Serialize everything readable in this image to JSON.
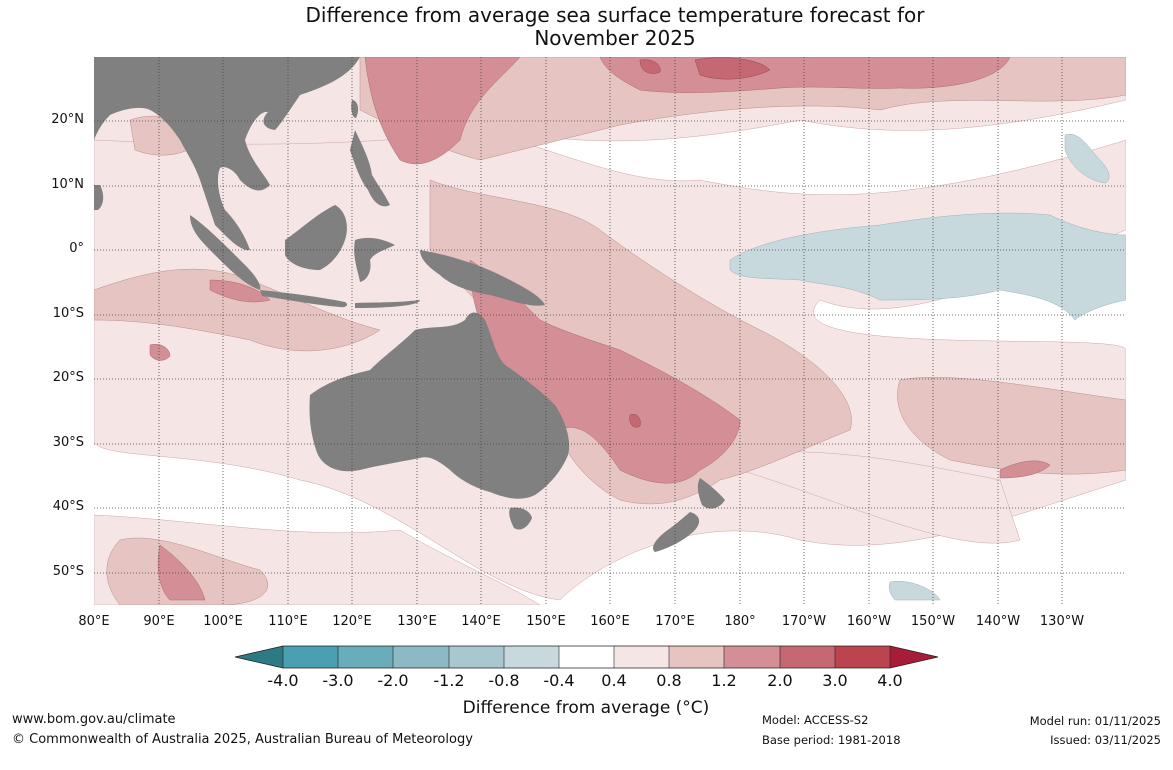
{
  "title": {
    "line1": "Difference from average sea surface temperature forecast for",
    "line2": "November 2025"
  },
  "map": {
    "latitude_labels": [
      "20°N",
      "10°N",
      "0°",
      "10°S",
      "20°S",
      "30°S",
      "40°S",
      "50°S"
    ],
    "longitude_labels": [
      "80°E",
      "90°E",
      "100°E",
      "110°E",
      "120°E",
      "130°E",
      "140°E",
      "150°E",
      "160°E",
      "170°E",
      "180°",
      "170°W",
      "160°W",
      "150°W",
      "140°W",
      "130°W"
    ],
    "land_color": "#808080",
    "ocean_color": "#ffffff"
  },
  "colorbar": {
    "title": "Difference from average (°C)",
    "tick_labels": [
      "-4.0",
      "-3.0",
      "-2.0",
      "-1.2",
      "-0.8",
      "-0.4",
      "0.4",
      "0.8",
      "1.2",
      "2.0",
      "3.0",
      "4.0"
    ],
    "colors": [
      "#2c7a83",
      "#4aa0b0",
      "#6aacba",
      "#8cb9c3",
      "#a8c7ce",
      "#c8d9de",
      "#ffffff",
      "#f5e6e5",
      "#e6c4c1",
      "#d48f96",
      "#c66873",
      "#bc444f",
      "#a81c38"
    ]
  },
  "footer": {
    "website": "www.bom.gov.au/climate",
    "copyright": "© Commonwealth of Australia 2025, Australian Bureau of Meteorology",
    "model": "Model: ACCESS-S2",
    "base_period": "Base period: 1981-2018",
    "model_run": "Model run: 01/11/2025",
    "issued": "Issued: 03/11/2025"
  }
}
